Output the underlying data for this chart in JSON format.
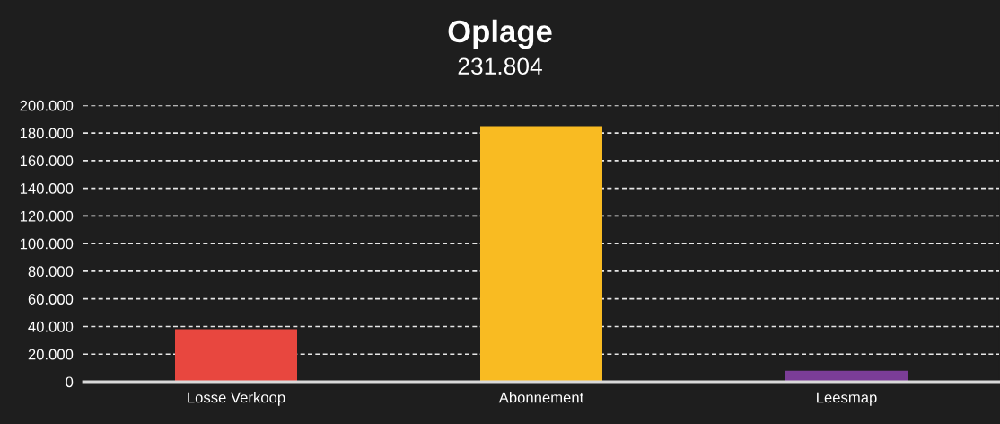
{
  "chart_data": {
    "type": "bar",
    "title": "Oplage",
    "subtitle": "231.804",
    "categories": [
      "Losse Verkoop",
      "Abonnement",
      "Leesmap"
    ],
    "values": [
      38000,
      185000,
      8000
    ],
    "colors": [
      "#e8473f",
      "#f9bb22",
      "#7b3d97"
    ],
    "ylim": [
      0,
      200000
    ],
    "yticks": [
      0,
      {
        "value": 20000,
        "label": "20.000"
      },
      {
        "value": 40000,
        "label": "40.000"
      },
      {
        "value": 60000,
        "label": "60.000"
      },
      {
        "value": 80000,
        "label": "80.000"
      },
      {
        "value": 100000,
        "label": "100.000"
      },
      {
        "value": 120000,
        "label": "120.000"
      },
      {
        "value": 140000,
        "label": "140.000"
      },
      {
        "value": 160000,
        "label": "160.000"
      },
      {
        "value": 180000,
        "label": "180.000"
      },
      {
        "value": 200000,
        "label": "200.000"
      }
    ],
    "grid": "y"
  }
}
